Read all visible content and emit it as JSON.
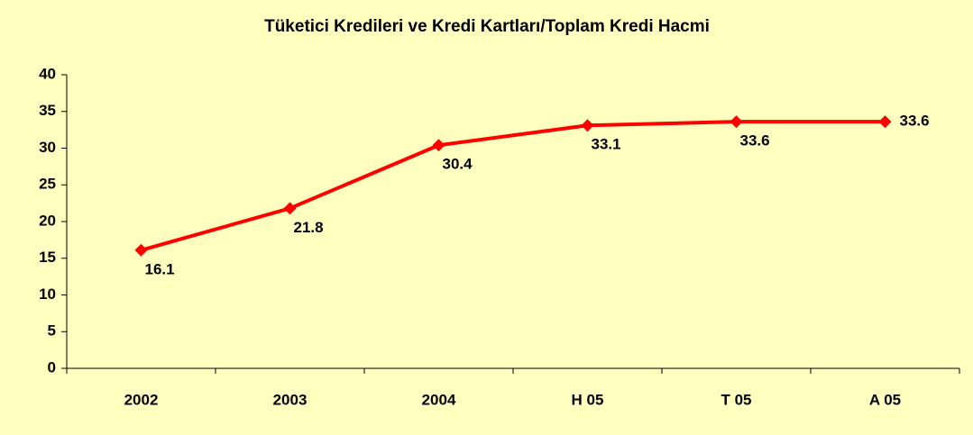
{
  "chart_data": {
    "type": "line",
    "title": "Tüketici Kredileri ve Kredi Kartları/Toplam Kredi Hacmi",
    "categories": [
      "2002",
      "2003",
      "2004",
      "H 05",
      "T 05",
      "A 05"
    ],
    "series": [
      {
        "name": "Tüketici Kredileri ve Kredi Kartları/Toplam Kredi Hacmi",
        "color": "#ff0000",
        "values": [
          16.1,
          21.8,
          30.4,
          33.1,
          33.6,
          33.6
        ]
      }
    ],
    "ylim": [
      0,
      40
    ],
    "yticks": [
      0,
      5,
      10,
      15,
      20,
      25,
      30,
      35,
      40
    ]
  }
}
